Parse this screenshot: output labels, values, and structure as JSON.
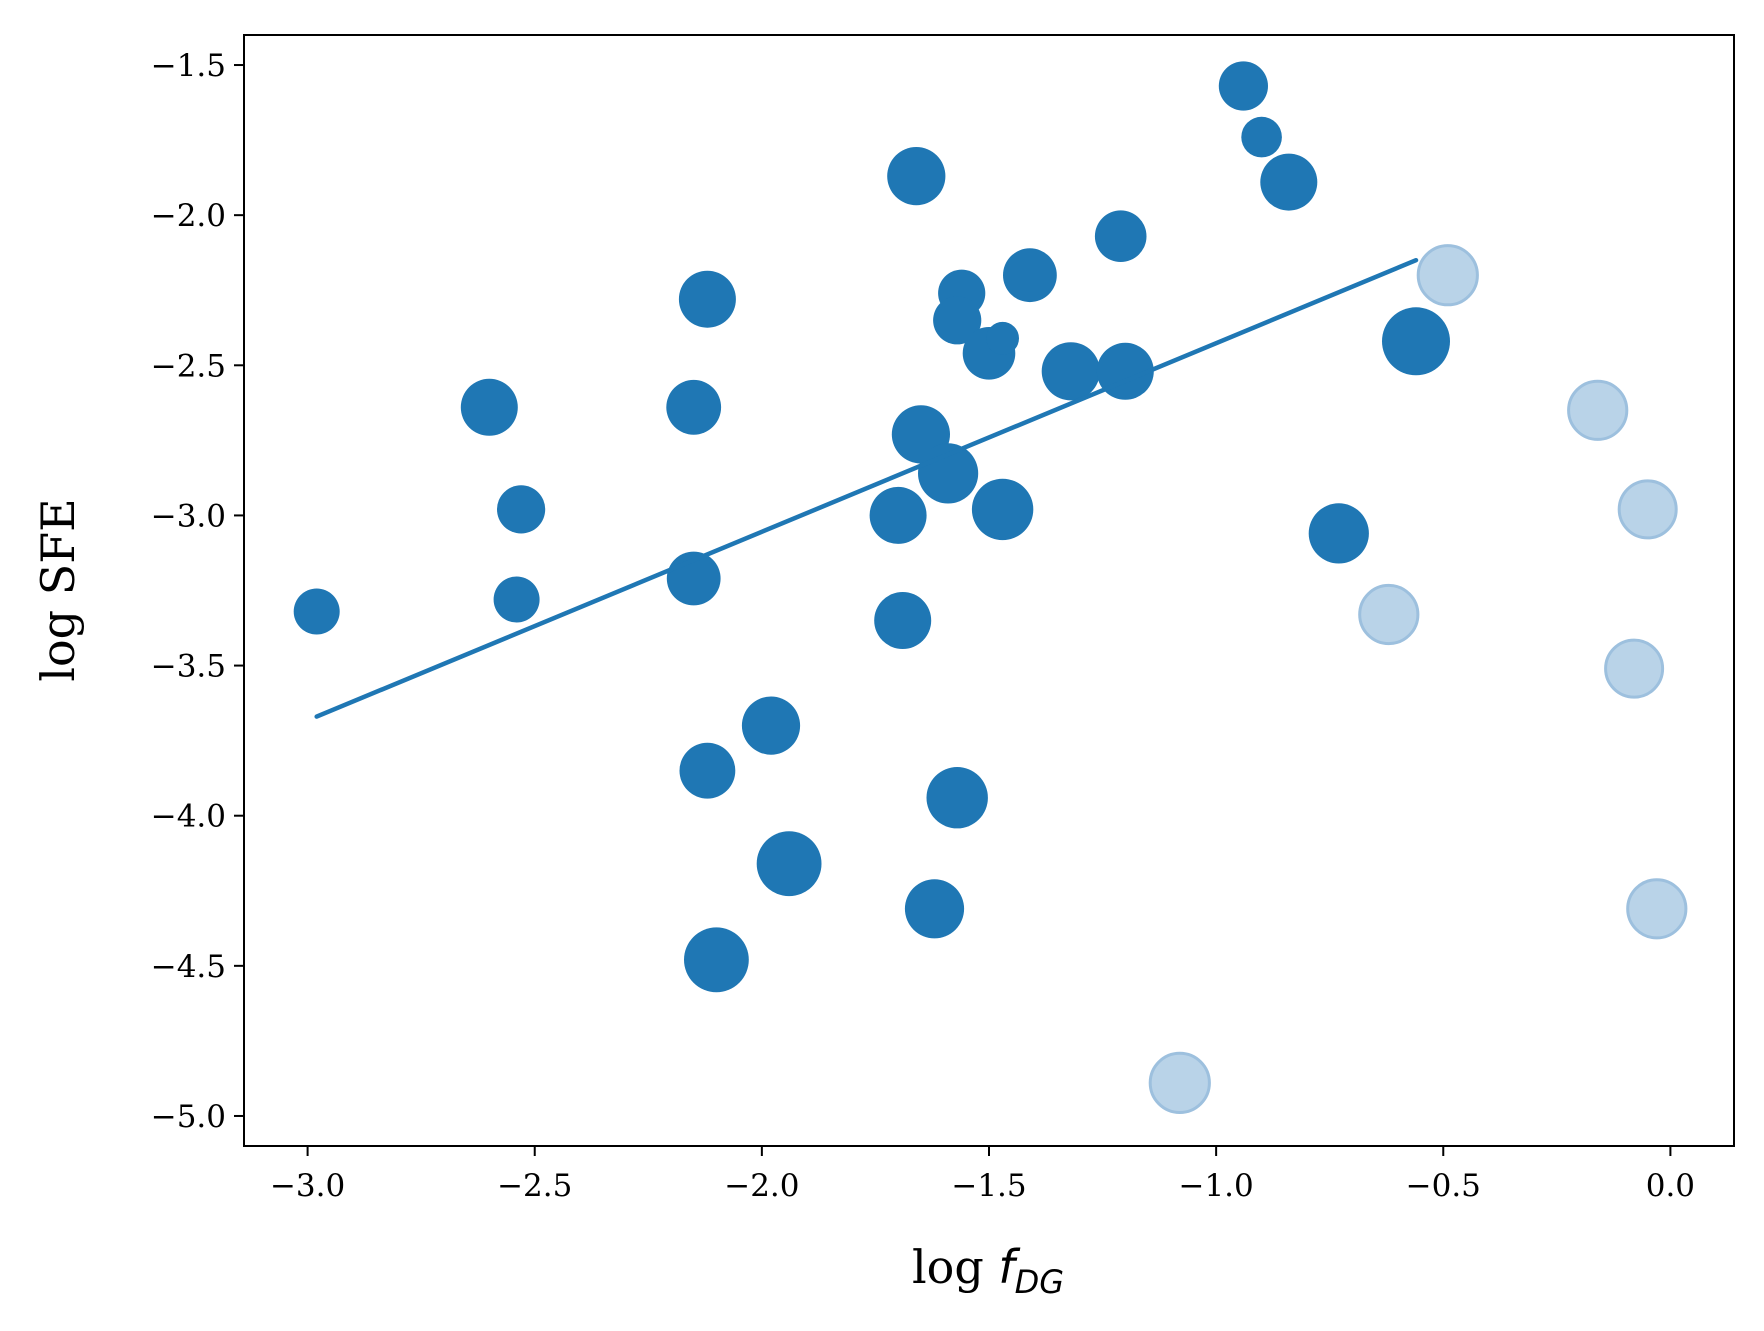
{
  "chart_data": {
    "type": "scatter",
    "xlabel": {
      "main": "log ",
      "var": "f",
      "sub": "DG"
    },
    "ylabel": "log SFE",
    "xlim": [
      -3.14,
      0.14
    ],
    "ylim": [
      -5.1,
      -1.4
    ],
    "xticks": [
      -3.0,
      -2.5,
      -2.0,
      -1.5,
      -1.0,
      -0.5,
      0.0
    ],
    "xtick_labels": [
      "−3.0",
      "−2.5",
      "−2.0",
      "−1.5",
      "−1.0",
      "−0.5",
      "0.0"
    ],
    "yticks": [
      -1.5,
      -2.0,
      -2.5,
      -3.0,
      -3.5,
      -4.0,
      -4.5,
      -5.0
    ],
    "ytick_labels": [
      "−1.5",
      "−2.0",
      "−2.5",
      "−3.0",
      "−3.5",
      "−4.0",
      "−4.5",
      "−5.0"
    ],
    "grid": false,
    "colors": {
      "main": "#1f77b4",
      "faded": "#b9d3e8",
      "faded_edge": "#9dc0de"
    },
    "series": [
      {
        "style": "main",
        "points": [
          {
            "x": -2.98,
            "y": -3.32,
            "s": 1.0
          },
          {
            "x": -2.6,
            "y": -2.64,
            "s": 1.5
          },
          {
            "x": -2.53,
            "y": -2.98,
            "s": 1.1
          },
          {
            "x": -2.54,
            "y": -3.28,
            "s": 1.0
          },
          {
            "x": -2.15,
            "y": -2.64,
            "s": 1.4
          },
          {
            "x": -2.12,
            "y": -2.28,
            "s": 1.5
          },
          {
            "x": -2.15,
            "y": -3.21,
            "s": 1.35
          },
          {
            "x": -2.12,
            "y": -3.85,
            "s": 1.45
          },
          {
            "x": -2.1,
            "y": -4.48,
            "s": 1.85
          },
          {
            "x": -1.98,
            "y": -3.7,
            "s": 1.55
          },
          {
            "x": -1.94,
            "y": -4.16,
            "s": 1.85
          },
          {
            "x": -1.66,
            "y": -1.87,
            "s": 1.55
          },
          {
            "x": -1.65,
            "y": -2.73,
            "s": 1.55
          },
          {
            "x": -1.7,
            "y": -3.0,
            "s": 1.5
          },
          {
            "x": -1.69,
            "y": -3.35,
            "s": 1.5
          },
          {
            "x": -1.59,
            "y": -2.86,
            "s": 1.65
          },
          {
            "x": -1.62,
            "y": -4.31,
            "s": 1.6
          },
          {
            "x": -1.57,
            "y": -3.94,
            "s": 1.7
          },
          {
            "x": -1.56,
            "y": -2.26,
            "s": 1.05
          },
          {
            "x": -1.57,
            "y": -2.35,
            "s": 1.1
          },
          {
            "x": -1.5,
            "y": -2.46,
            "s": 1.3
          },
          {
            "x": -1.47,
            "y": -2.41,
            "s": 0.4
          },
          {
            "x": -1.47,
            "y": -2.98,
            "s": 1.7
          },
          {
            "x": -1.41,
            "y": -2.2,
            "s": 1.35
          },
          {
            "x": -1.32,
            "y": -2.52,
            "s": 1.55
          },
          {
            "x": -1.21,
            "y": -2.07,
            "s": 1.25
          },
          {
            "x": -1.2,
            "y": -2.52,
            "s": 1.5
          },
          {
            "x": -0.94,
            "y": -1.57,
            "s": 1.15
          },
          {
            "x": -0.9,
            "y": -1.74,
            "s": 0.75
          },
          {
            "x": -0.84,
            "y": -1.89,
            "s": 1.5
          },
          {
            "x": -0.73,
            "y": -3.06,
            "s": 1.65
          },
          {
            "x": -0.56,
            "y": -2.42,
            "s": 2.0
          }
        ]
      },
      {
        "style": "faded",
        "points": [
          {
            "x": -0.49,
            "y": -2.2,
            "s": 1.6
          },
          {
            "x": -0.16,
            "y": -2.65,
            "s": 1.55
          },
          {
            "x": -0.05,
            "y": -2.98,
            "s": 1.5
          },
          {
            "x": -0.62,
            "y": -3.33,
            "s": 1.55
          },
          {
            "x": -0.08,
            "y": -3.51,
            "s": 1.5
          },
          {
            "x": -0.03,
            "y": -4.31,
            "s": 1.55
          },
          {
            "x": -1.08,
            "y": -4.89,
            "s": 1.6
          }
        ]
      }
    ],
    "fit_line": {
      "x": [
        -2.98,
        -0.56
      ],
      "y": [
        -3.67,
        -2.15
      ]
    }
  }
}
